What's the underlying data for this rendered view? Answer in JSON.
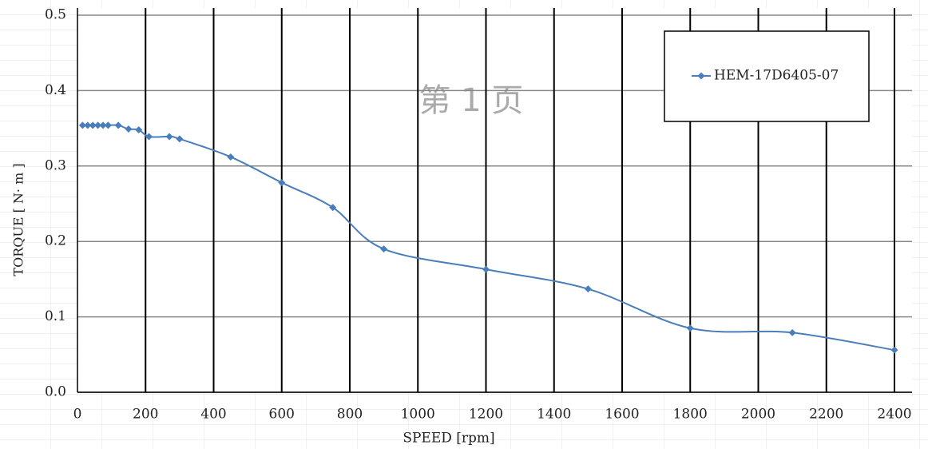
{
  "chart_data": {
    "type": "line",
    "x_label": "SPEED [rpm]",
    "y_label": "TORQUE [ N· m ]",
    "watermark": "第 1 页",
    "x": [
      15,
      30,
      45,
      60,
      75,
      90,
      120,
      150,
      180,
      210,
      270,
      300,
      450,
      600,
      750,
      900,
      1200,
      1500,
      1800,
      2100,
      2400
    ],
    "series": [
      {
        "name": "HEM-17D6405-07",
        "color": "#4a7ebb",
        "values": [
          0.354,
          0.354,
          0.354,
          0.354,
          0.354,
          0.354,
          0.354,
          0.349,
          0.348,
          0.339,
          0.339,
          0.336,
          0.312,
          0.278,
          0.245,
          0.19,
          0.163,
          0.137,
          0.085,
          0.079,
          0.056
        ]
      }
    ],
    "xlim": [
      0,
      2400
    ],
    "xticks": [
      0,
      200,
      400,
      600,
      800,
      1000,
      1200,
      1400,
      1600,
      1800,
      2000,
      2200,
      2400
    ],
    "ylim": [
      0,
      0.5
    ],
    "yticks": [
      {
        "value": 0,
        "label": "0.0"
      },
      0.1,
      0.2,
      0.3,
      0.4,
      0.5
    ],
    "grid": true,
    "legend": "upper right"
  }
}
